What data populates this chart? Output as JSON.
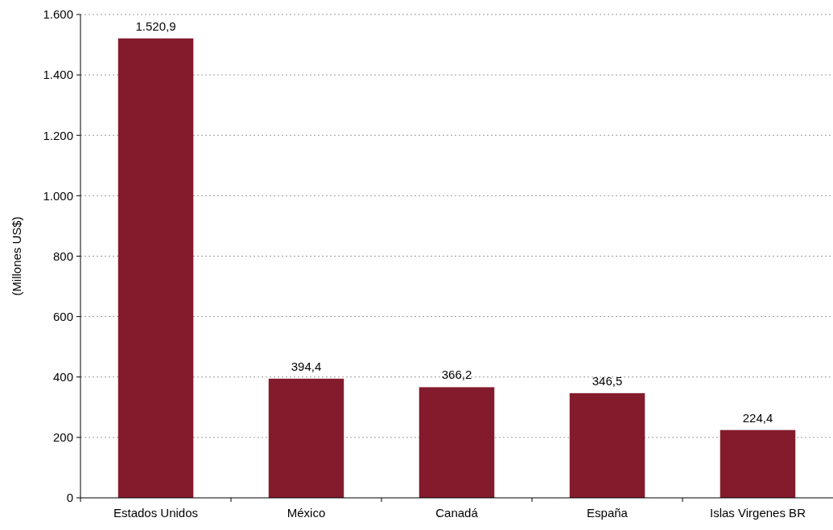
{
  "chart_data": {
    "type": "bar",
    "ylabel": "(Millones US$)",
    "categories": [
      "Estados Unidos",
      "México",
      "Canadá",
      "España",
      "Islas Virgenes BR"
    ],
    "values": [
      1520.9,
      394.4,
      366.2,
      346.5,
      224.4
    ],
    "value_labels": [
      "1.520,9",
      "394,4",
      "366,2",
      "346,5",
      "224,4"
    ],
    "color": "#841b2d",
    "ylim": [
      0,
      1600
    ],
    "yticks": [
      0,
      200,
      400,
      600,
      800,
      {
        "value": 1000,
        "label": "1.000"
      },
      {
        "value": 1200,
        "label": "1.200"
      },
      {
        "value": 1400,
        "label": "1.400"
      },
      {
        "value": 1600,
        "label": "1.600"
      }
    ],
    "grid": "y"
  }
}
